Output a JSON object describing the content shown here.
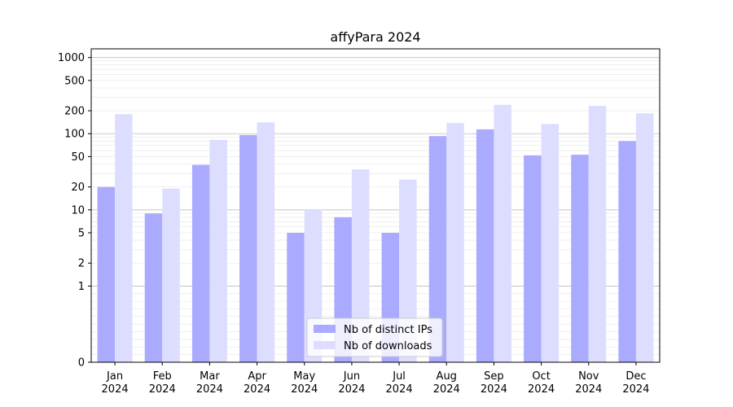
{
  "chart_data": {
    "type": "bar",
    "title": "affyPara 2024",
    "xlabel": "",
    "ylabel": "",
    "y_scale": "symlog",
    "ylim": [
      0,
      1300
    ],
    "y_ticks": [
      0,
      1,
      2,
      5,
      10,
      20,
      50,
      100,
      200,
      500,
      1000
    ],
    "y_tick_labels": [
      "0",
      "1",
      "2",
      "5",
      "10",
      "20",
      "50",
      "100",
      "200",
      "500",
      "1000"
    ],
    "categories": [
      {
        "month": "Jan",
        "year": "2024"
      },
      {
        "month": "Feb",
        "year": "2024"
      },
      {
        "month": "Mar",
        "year": "2024"
      },
      {
        "month": "Apr",
        "year": "2024"
      },
      {
        "month": "May",
        "year": "2024"
      },
      {
        "month": "Jun",
        "year": "2024"
      },
      {
        "month": "Jul",
        "year": "2024"
      },
      {
        "month": "Aug",
        "year": "2024"
      },
      {
        "month": "Sep",
        "year": "2024"
      },
      {
        "month": "Oct",
        "year": "2024"
      },
      {
        "month": "Nov",
        "year": "2024"
      },
      {
        "month": "Dec",
        "year": "2024"
      }
    ],
    "series": [
      {
        "name": "Nb of distinct IPs",
        "color": "#aaaaff",
        "values": [
          20,
          9,
          39,
          96,
          5,
          8,
          5,
          93,
          114,
          52,
          53,
          80
        ]
      },
      {
        "name": "Nb of downloads",
        "color": "#ddddff",
        "values": [
          180,
          19,
          83,
          141,
          10,
          34,
          25,
          138,
          240,
          134,
          232,
          185
        ]
      }
    ],
    "grid": true,
    "legend_position": "bottom-center"
  }
}
